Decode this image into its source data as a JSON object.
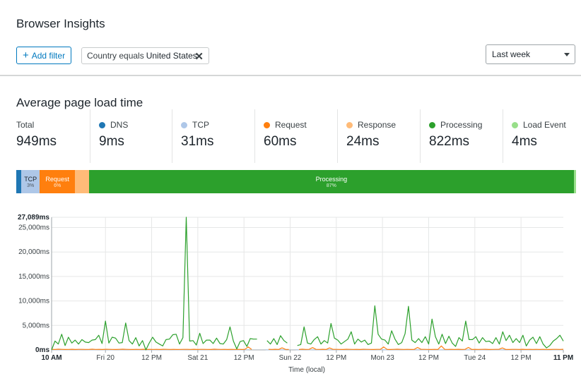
{
  "header": {
    "title": "Browser Insights",
    "add_filter_label": "Add filter",
    "filter": {
      "field": "Country equals",
      "value": "United States"
    },
    "time_range": "Last week"
  },
  "section": {
    "title": "Average page load time"
  },
  "metrics": [
    {
      "label": "Total",
      "value": "949ms",
      "color": ""
    },
    {
      "label": "DNS",
      "value": "9ms",
      "color": "#1f77b4"
    },
    {
      "label": "TCP",
      "value": "31ms",
      "color": "#aec7e8"
    },
    {
      "label": "Request",
      "value": "60ms",
      "color": "#ff7f0e"
    },
    {
      "label": "Response",
      "value": "24ms",
      "color": "#ffbb78"
    },
    {
      "label": "Processing",
      "value": "822ms",
      "color": "#2ca02c"
    },
    {
      "label": "Load Event",
      "value": "4ms",
      "color": "#98df8a"
    }
  ],
  "breakdown_bar": [
    {
      "name": "",
      "pct": "",
      "share": 0.009,
      "color": "#1f77b4"
    },
    {
      "name": "TCP",
      "pct": "3%",
      "share": 0.033,
      "color": "#aec7e8"
    },
    {
      "name": "Request",
      "pct": "6%",
      "share": 0.063,
      "color": "#ff7f0e"
    },
    {
      "name": "",
      "pct": "",
      "share": 0.025,
      "color": "#ffbb78"
    },
    {
      "name": "Processing",
      "pct": "87%",
      "share": 0.866,
      "color": "#2ca02c"
    },
    {
      "name": "",
      "pct": "",
      "share": 0.004,
      "color": "#98df8a"
    }
  ],
  "chart_data": {
    "type": "line",
    "ylabel": "",
    "xlabel": "Time (local)",
    "y_ticks": [
      "27,089ms",
      "25,000ms",
      "20,000ms",
      "15,000ms",
      "10,000ms",
      "5,000ms",
      "0ms"
    ],
    "y_tick_values": [
      27089,
      25000,
      20000,
      15000,
      10000,
      5000,
      0
    ],
    "ylim": [
      0,
      27089
    ],
    "x_ticks": [
      {
        "label": "10 AM",
        "hour": 0,
        "bold": true
      },
      {
        "label": "Fri 20",
        "hour": 14,
        "bold": false
      },
      {
        "label": "12 PM",
        "hour": 26,
        "bold": false
      },
      {
        "label": "Sat 21",
        "hour": 38,
        "bold": false
      },
      {
        "label": "12 PM",
        "hour": 50,
        "bold": false
      },
      {
        "label": "Sun 22",
        "hour": 62,
        "bold": false
      },
      {
        "label": "12 PM",
        "hour": 74,
        "bold": false
      },
      {
        "label": "Mon 23",
        "hour": 86,
        "bold": false
      },
      {
        "label": "12 PM",
        "hour": 98,
        "bold": false
      },
      {
        "label": "Tue 24",
        "hour": 110,
        "bold": false
      },
      {
        "label": "12 PM",
        "hour": 122,
        "bold": false
      },
      {
        "label": "11 PM",
        "hour": 133,
        "bold": true
      }
    ],
    "xlim": [
      0,
      133
    ],
    "grid": true,
    "series": [
      {
        "name": "Processing",
        "color": "#2ca02c",
        "values": [
          0,
          1800,
          1200,
          3200,
          900,
          2600,
          1400,
          2000,
          1200,
          2100,
          1600,
          1500,
          2000,
          2100,
          3000,
          1300,
          5900,
          1400,
          2600,
          2400,
          1400,
          1500,
          5500,
          1900,
          1200,
          2500,
          800,
          1900,
          0,
          1400,
          2600,
          1600,
          1200,
          800,
          2100,
          2200,
          3100,
          3200,
          1200,
          2500,
          27089,
          1800,
          1900,
          1000,
          3400,
          1300,
          2000,
          2000,
          1300,
          2400,
          1300,
          1200,
          2100,
          4700,
          1800,
          200,
          1700,
          1900,
          700,
          2300,
          2200,
          2200,
          null,
          null,
          1900,
          1200,
          2300,
          1100,
          2900,
          1900,
          1400,
          null,
          null,
          900,
          1100,
          4700,
          1400,
          1200,
          2100,
          2700,
          1200,
          1900,
          1400,
          5400,
          2400,
          2000,
          1200,
          1700,
          2200,
          3700,
          1200,
          2200,
          1600,
          2000,
          1100,
          1400,
          9000,
          3200,
          2200,
          2000,
          1200,
          3900,
          2200,
          1100,
          1500,
          3300,
          8900,
          2000,
          1500,
          2300,
          1500,
          2700,
          1200,
          6300,
          2700,
          1200,
          3200,
          1300,
          2800,
          1400,
          700,
          2500,
          1800,
          5900,
          2100,
          2100,
          2700,
          1400,
          2500,
          1700,
          1800,
          1300,
          2500,
          1200,
          3700,
          1900,
          3000,
          1500,
          2300,
          1500,
          3000,
          800,
          2000,
          2600,
          1300,
          2700,
          1200,
          400,
          900,
          1800,
          2300,
          3000,
          1800
        ],
        "gaps_note": ""
      },
      {
        "name": "Request",
        "color": "#ff7f0e",
        "values": [
          120,
          90,
          140,
          110,
          80,
          100,
          130,
          90,
          110,
          120,
          100,
          95,
          140,
          100,
          110,
          90,
          130,
          120,
          100,
          90,
          110,
          140,
          120,
          100,
          90,
          110,
          100,
          130,
          90,
          120,
          100,
          110,
          90,
          130,
          120,
          100,
          110,
          90,
          100,
          120,
          110,
          100,
          130,
          90,
          120,
          110,
          100,
          90,
          140,
          110,
          100,
          120,
          90,
          110,
          100,
          120,
          90,
          100,
          600,
          110,
          null,
          null,
          null,
          null,
          110,
          100,
          130,
          90,
          420,
          120,
          100,
          null,
          null,
          90,
          140,
          100,
          120,
          480,
          110,
          100,
          130,
          90,
          400,
          110,
          120,
          100,
          90,
          130,
          110,
          100,
          120,
          90,
          130,
          110,
          100,
          90,
          120,
          110,
          600,
          100,
          90,
          120,
          140,
          110,
          100,
          120,
          90,
          100,
          500,
          110,
          120,
          100,
          90,
          110,
          100,
          800,
          110,
          100,
          120,
          90,
          130,
          100,
          110,
          500,
          90,
          120,
          100,
          110,
          130,
          90,
          100,
          110,
          120,
          400,
          100,
          90,
          110,
          120,
          100,
          130,
          90,
          110,
          100,
          120,
          90,
          110,
          100,
          90,
          120,
          110,
          100,
          130
        ]
      },
      {
        "name": "TCP",
        "color": "#aec7e8",
        "values": [
          40,
          30,
          50,
          30,
          40,
          30,
          50,
          40,
          30,
          40,
          50,
          30,
          40,
          30,
          50,
          40,
          30,
          40,
          30,
          50,
          40,
          30,
          40,
          50,
          30,
          40,
          30,
          50,
          40,
          30,
          40,
          30,
          50,
          40,
          30,
          40,
          50,
          30,
          40,
          30,
          50,
          40,
          30,
          40,
          30,
          50,
          40,
          30,
          40,
          50,
          30,
          40,
          30,
          50,
          40,
          30,
          40,
          30,
          50,
          40,
          null,
          null,
          null,
          null,
          40,
          30,
          50,
          40,
          30,
          40,
          30,
          null,
          null,
          40,
          30,
          50,
          40,
          30,
          40,
          50,
          30,
          40,
          30,
          50,
          40,
          30,
          40,
          30,
          50,
          40,
          30,
          40,
          50,
          30,
          40,
          30,
          50,
          40,
          30,
          40,
          30,
          50,
          40,
          30,
          40,
          50,
          30,
          40,
          30,
          50,
          40,
          30,
          40,
          30,
          50,
          40,
          30,
          40,
          50,
          30,
          40,
          30,
          50,
          40,
          30,
          40,
          30,
          50,
          40,
          30,
          40,
          50,
          30,
          40,
          30,
          50,
          40,
          30,
          40,
          30,
          50,
          40,
          30,
          40,
          50,
          30,
          40,
          30,
          50,
          40,
          30,
          40,
          30,
          50
        ]
      }
    ]
  }
}
